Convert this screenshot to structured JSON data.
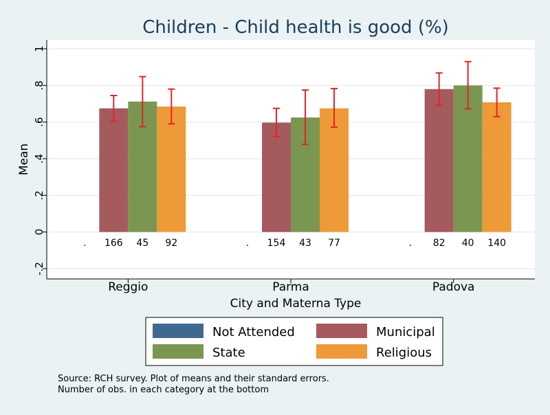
{
  "chart_data": {
    "type": "bar",
    "title": "Children - Child health is good (%)",
    "xlabel": "City and Materna Type",
    "ylabel": "Mean",
    "ylim": [
      -0.2,
      1
    ],
    "yticks": [
      -0.2,
      0,
      0.2,
      0.4,
      0.6,
      0.8,
      1
    ],
    "ytick_labels": [
      "-.2",
      "0",
      ".2",
      ".4",
      ".6",
      ".8",
      "1"
    ],
    "grid": true,
    "legend_position": "bottom",
    "categories": [
      "Reggio",
      "Parma",
      "Padova"
    ],
    "series": [
      {
        "name": "Not Attended",
        "color": "#3e6a8f",
        "values": [
          null,
          null,
          null
        ],
        "err_low": [
          null,
          null,
          null
        ],
        "err_high": [
          null,
          null,
          null
        ],
        "counts": [
          ".",
          ".",
          "."
        ]
      },
      {
        "name": "Municipal",
        "color": "#a55a5e",
        "values": [
          0.675,
          0.597,
          0.78
        ],
        "err_low": [
          0.605,
          0.52,
          0.692
        ],
        "err_high": [
          0.745,
          0.675,
          0.868
        ],
        "counts": [
          "166",
          "154",
          "82"
        ]
      },
      {
        "name": "State",
        "color": "#7a9650",
        "values": [
          0.712,
          0.625,
          0.8
        ],
        "err_low": [
          0.575,
          0.478,
          0.672
        ],
        "err_high": [
          0.848,
          0.775,
          0.93
        ],
        "counts": [
          "45",
          "43",
          "40"
        ]
      },
      {
        "name": "Religious",
        "color": "#ee9a38",
        "values": [
          0.685,
          0.675,
          0.708
        ],
        "err_low": [
          0.59,
          0.572,
          0.63
        ],
        "err_high": [
          0.78,
          0.783,
          0.785
        ],
        "counts": [
          "92",
          "77",
          "140"
        ]
      }
    ],
    "error_bar_color": "#e3242b",
    "note": [
      "Source: RCH survey. Plot of means and their standard errors.",
      "Number of obs. in each category at the bottom"
    ]
  }
}
